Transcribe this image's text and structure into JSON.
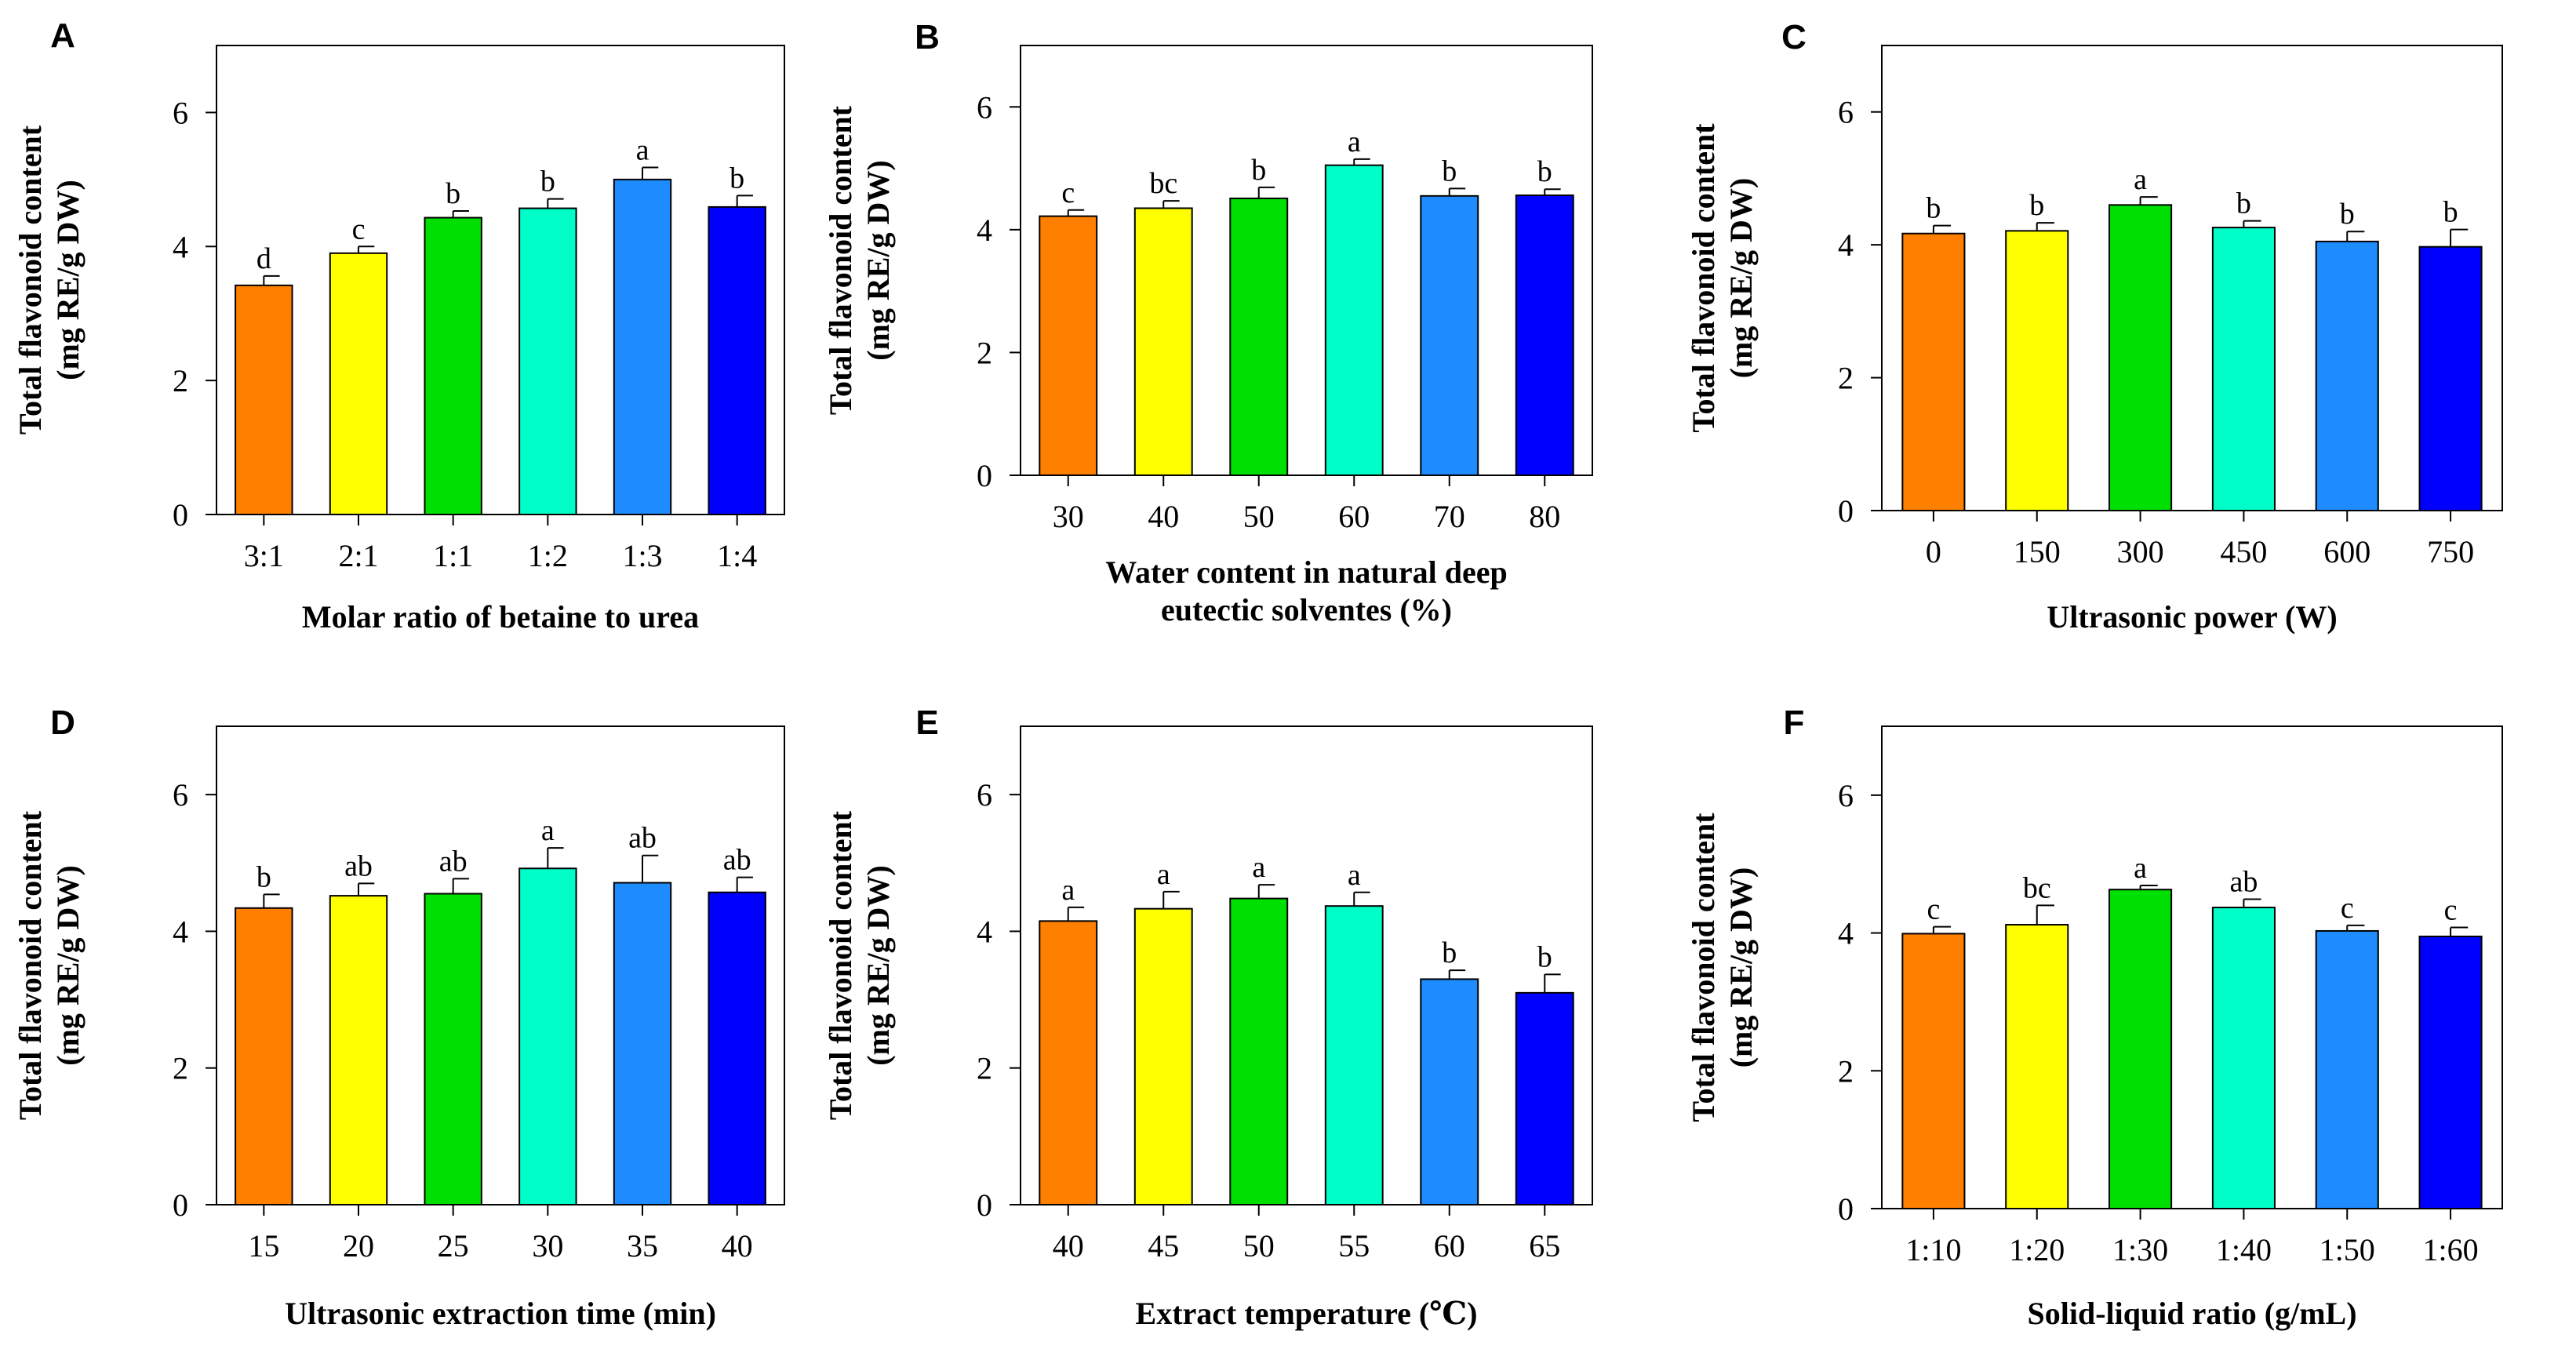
{
  "figure": {
    "y_axis_label_line1": "Total flavonoid content",
    "y_axis_label_line2": "(mg RE/g DW)",
    "bar_colors": [
      "#FF8000",
      "#FFFF00",
      "#00E000",
      "#00FFC8",
      "#1E8CFF",
      "#0000FF"
    ],
    "errorbar_color": "#000000"
  },
  "chart_data": [
    {
      "panel": "A",
      "type": "bar",
      "categories": [
        "3:1",
        "2:1",
        "1:1",
        "1:2",
        "1:3",
        "1:4"
      ],
      "values": [
        3.42,
        3.9,
        4.43,
        4.57,
        5.0,
        4.59
      ],
      "errors": [
        0.14,
        0.1,
        0.1,
        0.14,
        0.18,
        0.17
      ],
      "significance": [
        "d",
        "c",
        "b",
        "b",
        "a",
        "b"
      ],
      "xlabel_lines": [
        "Molar ratio of betaine to urea"
      ],
      "ylabel": "Total flavonoid content (mg RE/g DW)",
      "ylim": [
        0,
        7
      ],
      "yticks": [
        0,
        2,
        4,
        6
      ]
    },
    {
      "panel": "B",
      "type": "bar",
      "categories": [
        "30",
        "40",
        "50",
        "60",
        "70",
        "80"
      ],
      "values": [
        4.22,
        4.35,
        4.51,
        5.05,
        4.55,
        4.56
      ],
      "errors": [
        0.1,
        0.12,
        0.18,
        0.1,
        0.12,
        0.1
      ],
      "significance": [
        "c",
        "bc",
        "b",
        "a",
        "b",
        "b"
      ],
      "xlabel_lines": [
        "Water content in natural deep",
        "eutectic solventes (%)"
      ],
      "ylabel": "Total flavonoid content (mg RE/g DW)",
      "ylim": [
        0,
        7
      ],
      "yticks": [
        0,
        2,
        4,
        6
      ]
    },
    {
      "panel": "C",
      "type": "bar",
      "categories": [
        "0",
        "150",
        "300",
        "450",
        "600",
        "750"
      ],
      "values": [
        4.17,
        4.21,
        4.6,
        4.26,
        4.05,
        3.97
      ],
      "errors": [
        0.12,
        0.12,
        0.12,
        0.1,
        0.15,
        0.26
      ],
      "significance": [
        "b",
        "b",
        "a",
        "b",
        "b",
        "b"
      ],
      "xlabel_lines": [
        "Ultrasonic power (W)"
      ],
      "ylabel": "Total flavonoid content (mg RE/g DW)",
      "ylim": [
        0,
        7
      ],
      "yticks": [
        0,
        2,
        4,
        6
      ]
    },
    {
      "panel": "D",
      "type": "bar",
      "categories": [
        "15",
        "20",
        "25",
        "30",
        "35",
        "40"
      ],
      "values": [
        4.34,
        4.52,
        4.55,
        4.92,
        4.71,
        4.57
      ],
      "errors": [
        0.2,
        0.18,
        0.22,
        0.3,
        0.4,
        0.22
      ],
      "significance": [
        "b",
        "ab",
        "ab",
        "a",
        "ab",
        "ab"
      ],
      "xlabel_lines": [
        "Ultrasonic extraction time (min)"
      ],
      "ylabel": "Total flavonoid content (mg RE/g DW)",
      "ylim": [
        0,
        7
      ],
      "yticks": [
        0,
        2,
        4,
        6
      ]
    },
    {
      "panel": "E",
      "type": "bar",
      "categories": [
        "40",
        "45",
        "50",
        "55",
        "60",
        "65"
      ],
      "values": [
        4.15,
        4.33,
        4.48,
        4.37,
        3.3,
        3.1
      ],
      "errors": [
        0.2,
        0.25,
        0.2,
        0.2,
        0.13,
        0.27
      ],
      "significance": [
        "a",
        "a",
        "a",
        "a",
        "b",
        "b"
      ],
      "xlabel_lines": [
        "Extract temperature (℃)"
      ],
      "ylabel": "Total flavonoid content (mg RE/g DW)",
      "ylim": [
        0,
        7
      ],
      "yticks": [
        0,
        2,
        4,
        6
      ]
    },
    {
      "panel": "F",
      "type": "bar",
      "categories": [
        "1:10",
        "1:20",
        "1:30",
        "1:40",
        "1:50",
        "1:60"
      ],
      "values": [
        3.99,
        4.12,
        4.63,
        4.37,
        4.03,
        3.95
      ],
      "errors": [
        0.1,
        0.28,
        0.06,
        0.12,
        0.08,
        0.13
      ],
      "significance": [
        "c",
        "bc",
        "a",
        "ab",
        "c",
        "c"
      ],
      "xlabel_lines": [
        "Solid-liquid ratio (g/mL)"
      ],
      "ylabel": "Total flavonoid content (mg RE/g DW)",
      "ylim": [
        0,
        7
      ],
      "yticks": [
        0,
        2,
        4,
        6
      ]
    }
  ]
}
